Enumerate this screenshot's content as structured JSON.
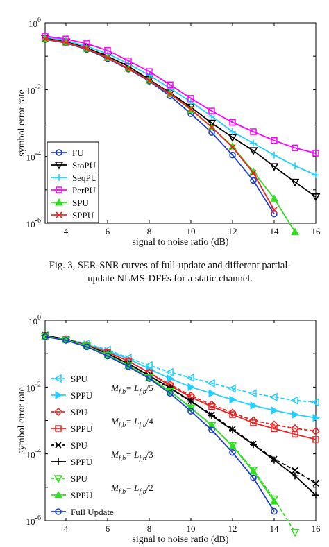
{
  "caption": {
    "line1": "Fig. 3, SER-SNR curves of full-update and different partial-",
    "line2": "update NLMS-DFEs for a static channel."
  },
  "chart_data": [
    {
      "type": "line",
      "xlabel": "signal to noise ratio (dB)",
      "ylabel": "symbol error rate",
      "xlim": [
        3,
        16
      ],
      "ylim": [
        1e-06,
        1
      ],
      "yscale": "log",
      "xticks": [
        "4",
        "6",
        "8",
        "10",
        "12",
        "14",
        "16"
      ],
      "yticks": [
        {
          "base": "10",
          "exp": "0"
        },
        {
          "base": "10",
          "exp": "-2"
        },
        {
          "base": "10",
          "exp": "-4"
        },
        {
          "base": "10",
          "exp": "-6"
        }
      ],
      "legend_position": "bottom-left",
      "series": [
        {
          "name": "FU",
          "color": "#1f3fd0",
          "marker": "circle",
          "dash": "solid",
          "x": [
            3,
            4,
            5,
            6,
            7,
            8,
            9,
            10,
            11,
            12,
            13,
            14
          ],
          "y": [
            0.32,
            0.25,
            0.16,
            0.085,
            0.041,
            0.018,
            0.0065,
            0.0019,
            0.00052,
            0.00011,
            1.9e-05,
            1.9e-06
          ]
        },
        {
          "name": "StoPU",
          "color": "#000000",
          "marker": "tri-down",
          "dash": "solid",
          "x": [
            3,
            4,
            5,
            6,
            7,
            8,
            9,
            10,
            11,
            12,
            13,
            14,
            15,
            16
          ],
          "y": [
            0.35,
            0.27,
            0.18,
            0.1,
            0.05,
            0.02,
            0.008,
            0.003,
            0.001,
            0.00037,
            0.00015,
            5e-05,
            1.7e-05,
            6.2e-06
          ]
        },
        {
          "name": "SeqPU",
          "color": "#22d0ff",
          "marker": "plus",
          "dash": "solid",
          "x": [
            3,
            4,
            5,
            6,
            7,
            8,
            9,
            10,
            11,
            12,
            13,
            14,
            15,
            16
          ],
          "y": [
            0.38,
            0.3,
            0.2,
            0.12,
            0.06,
            0.027,
            0.011,
            0.0043,
            0.0016,
            0.00055,
            0.00025,
            0.00011,
            5.2e-05,
            2.8e-05
          ]
        },
        {
          "name": "PerPU",
          "color": "#ff00ff",
          "marker": "square",
          "dash": "solid",
          "x": [
            3,
            4,
            5,
            6,
            7,
            8,
            9,
            10,
            11,
            12,
            13,
            14,
            15,
            16
          ],
          "y": [
            0.4,
            0.33,
            0.24,
            0.15,
            0.073,
            0.035,
            0.014,
            0.0055,
            0.0023,
            0.00105,
            0.00055,
            0.0003,
            0.00018,
            0.000125
          ]
        },
        {
          "name": "SPU",
          "color": "#33dd22",
          "marker": "tri-up",
          "dash": "solid",
          "x": [
            3,
            4,
            5,
            6,
            7,
            8,
            9,
            10,
            11,
            12,
            13,
            14,
            15
          ],
          "y": [
            0.33,
            0.26,
            0.17,
            0.09,
            0.043,
            0.019,
            0.0075,
            0.0025,
            0.00075,
            0.0002,
            3.5e-05,
            5.5e-06,
            5.5e-07
          ]
        },
        {
          "name": "SPPU",
          "color": "#ee2222",
          "marker": "x",
          "dash": "solid",
          "x": [
            3,
            4,
            5,
            6,
            7,
            8,
            9,
            10,
            11,
            12,
            13,
            14
          ],
          "y": [
            0.33,
            0.26,
            0.17,
            0.09,
            0.043,
            0.019,
            0.0075,
            0.0026,
            0.00075,
            0.00019,
            3.2e-05,
            2.5e-06
          ]
        }
      ]
    },
    {
      "type": "line",
      "xlabel": "signal to noise ratio (dB)",
      "ylabel": "symbol error rate",
      "xlim": [
        3,
        16
      ],
      "ylim": [
        1e-06,
        1
      ],
      "yscale": "log",
      "xticks": [
        "4",
        "6",
        "8",
        "10",
        "12",
        "14",
        "16"
      ],
      "yticks": [
        {
          "base": "10",
          "exp": "0"
        },
        {
          "base": "10",
          "exp": "-2"
        },
        {
          "base": "10",
          "exp": "-4"
        },
        {
          "base": "10",
          "exp": "-6"
        }
      ],
      "legend_position": "bottom-left",
      "groups": [
        {
          "main": "M",
          "sub": "f,b",
          "eq": "= L",
          "sub2": "f,b",
          "div": "/5"
        },
        {
          "main": "M",
          "sub": "f,b",
          "eq": "= L",
          "sub2": "f,b",
          "div": "/4"
        },
        {
          "main": "M",
          "sub": "f,b",
          "eq": "= L",
          "sub2": "f,b",
          "div": "/3"
        },
        {
          "main": "M",
          "sub": "f,b",
          "eq": "= L",
          "sub2": "f,b",
          "div": "/2"
        }
      ],
      "series": [
        {
          "name": "SPU",
          "color": "#22d0ff",
          "marker": "tri-left",
          "dash": "dashed",
          "x": [
            3,
            4,
            5,
            6,
            7,
            8,
            9,
            10,
            11,
            12,
            13,
            14,
            15,
            16
          ],
          "y": [
            0.35,
            0.27,
            0.2,
            0.13,
            0.075,
            0.045,
            0.028,
            0.019,
            0.013,
            0.009,
            0.0065,
            0.005,
            0.004,
            0.0035
          ]
        },
        {
          "name": "SPPU",
          "color": "#22d0ff",
          "marker": "tri-right",
          "dash": "solid",
          "x": [
            3,
            4,
            5,
            6,
            7,
            8,
            9,
            10,
            11,
            12,
            13,
            14,
            15,
            16
          ],
          "y": [
            0.35,
            0.27,
            0.19,
            0.12,
            0.07,
            0.035,
            0.018,
            0.01,
            0.0065,
            0.0042,
            0.0028,
            0.002,
            0.0015,
            0.0012
          ]
        },
        {
          "name": "SPU",
          "color": "#ee2222",
          "marker": "diamond",
          "dash": "dashed",
          "x": [
            3,
            4,
            5,
            6,
            7,
            8,
            9,
            10,
            11,
            12,
            13,
            14,
            15,
            16
          ],
          "y": [
            0.35,
            0.27,
            0.18,
            0.11,
            0.06,
            0.027,
            0.012,
            0.0055,
            0.003,
            0.0017,
            0.001,
            0.00075,
            0.00058,
            0.00048
          ]
        },
        {
          "name": "SPPU",
          "color": "#ee2222",
          "marker": "square",
          "dash": "solid",
          "x": [
            3,
            4,
            5,
            6,
            7,
            8,
            9,
            10,
            11,
            12,
            13,
            14,
            15,
            16
          ],
          "y": [
            0.35,
            0.27,
            0.18,
            0.11,
            0.06,
            0.027,
            0.011,
            0.005,
            0.0026,
            0.0015,
            0.00085,
            0.00057,
            0.00039,
            0.00027
          ]
        },
        {
          "name": "SPU",
          "color": "#000000",
          "marker": "x",
          "dash": "dashed",
          "x": [
            3,
            4,
            5,
            6,
            7,
            8,
            9,
            10,
            11,
            12,
            13,
            14,
            15,
            16
          ],
          "y": [
            0.35,
            0.27,
            0.17,
            0.1,
            0.05,
            0.022,
            0.009,
            0.0038,
            0.0015,
            0.00055,
            0.0002,
            7e-05,
            3.2e-05,
            1.3e-05
          ]
        },
        {
          "name": "SPPU",
          "color": "#000000",
          "marker": "plus",
          "dash": "solid",
          "x": [
            3,
            4,
            5,
            6,
            7,
            8,
            9,
            10,
            11,
            12,
            13,
            14,
            15,
            16
          ],
          "y": [
            0.35,
            0.27,
            0.17,
            0.1,
            0.05,
            0.022,
            0.0095,
            0.0038,
            0.0014,
            0.00052,
            0.00019,
            6.5e-05,
            2.2e-05,
            5.8e-06
          ]
        },
        {
          "name": "SPU",
          "color": "#33dd22",
          "marker": "tri-down",
          "dash": "dashed",
          "x": [
            3,
            4,
            5,
            6,
            7,
            8,
            9,
            10,
            11,
            12,
            13,
            14,
            15
          ],
          "y": [
            0.33,
            0.26,
            0.17,
            0.09,
            0.044,
            0.019,
            0.0075,
            0.0024,
            0.00072,
            0.00018,
            3.3e-05,
            4.5e-06,
            4.5e-07
          ]
        },
        {
          "name": "SPPU",
          "color": "#33dd22",
          "marker": "tri-up",
          "dash": "solid",
          "x": [
            3,
            4,
            5,
            6,
            7,
            8,
            9,
            10,
            11,
            12,
            13,
            14
          ],
          "y": [
            0.33,
            0.26,
            0.17,
            0.09,
            0.044,
            0.019,
            0.0075,
            0.0024,
            0.00072,
            0.00017,
            3e-05,
            3.8e-06
          ]
        },
        {
          "name": "Full Update",
          "color": "#1f3fd0",
          "marker": "circle",
          "dash": "solid",
          "x": [
            3,
            4,
            5,
            6,
            7,
            8,
            9,
            10,
            11,
            12,
            13,
            14
          ],
          "y": [
            0.32,
            0.25,
            0.16,
            0.085,
            0.041,
            0.018,
            0.0065,
            0.0019,
            0.00052,
            0.00011,
            1.9e-05,
            1.9e-06
          ]
        }
      ]
    }
  ]
}
